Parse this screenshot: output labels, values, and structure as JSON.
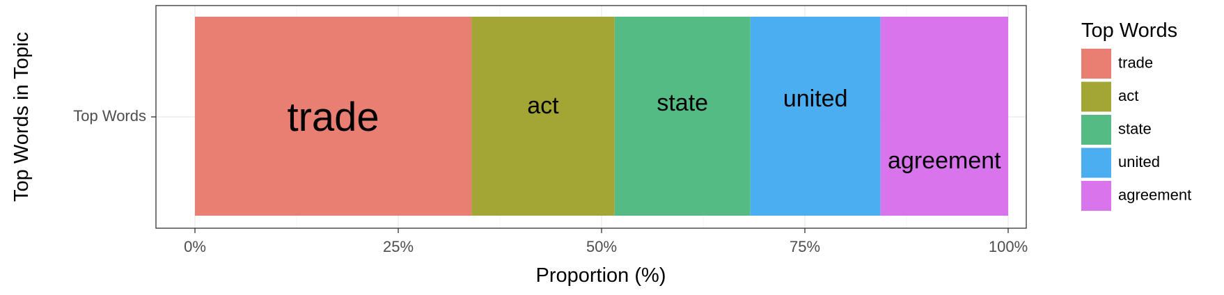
{
  "chart_data": {
    "type": "bar",
    "orientation": "horizontal-stacked",
    "categories": [
      "Top Words"
    ],
    "series": [
      {
        "name": "trade",
        "values": [
          34.0
        ],
        "color": "#E97E72",
        "label_size": 58,
        "label_y_frac": 0.52
      },
      {
        "name": "act",
        "values": [
          17.6
        ],
        "color": "#A3A535",
        "label_size": 34,
        "label_y_frac": 0.455
      },
      {
        "name": "state",
        "values": [
          16.7
        ],
        "color": "#53BB83",
        "label_size": 34,
        "label_y_frac": 0.44
      },
      {
        "name": "united",
        "values": [
          16.0
        ],
        "color": "#4AAEF0",
        "label_size": 34,
        "label_y_frac": 0.42
      },
      {
        "name": "agreement",
        "values": [
          15.7
        ],
        "color": "#D874EC",
        "label_size": 34,
        "label_y_frac": 0.73
      }
    ],
    "xlabel": "Proportion (%)",
    "ylabel": "Top Words in Topic",
    "xlim": [
      0,
      100
    ],
    "x_ticks": [
      "0%",
      "25%",
      "50%",
      "75%",
      "100%"
    ],
    "x_tick_values": [
      0,
      25,
      50,
      75,
      100
    ],
    "grid": true,
    "legend_title": "Top Words",
    "legend_position": "right"
  }
}
